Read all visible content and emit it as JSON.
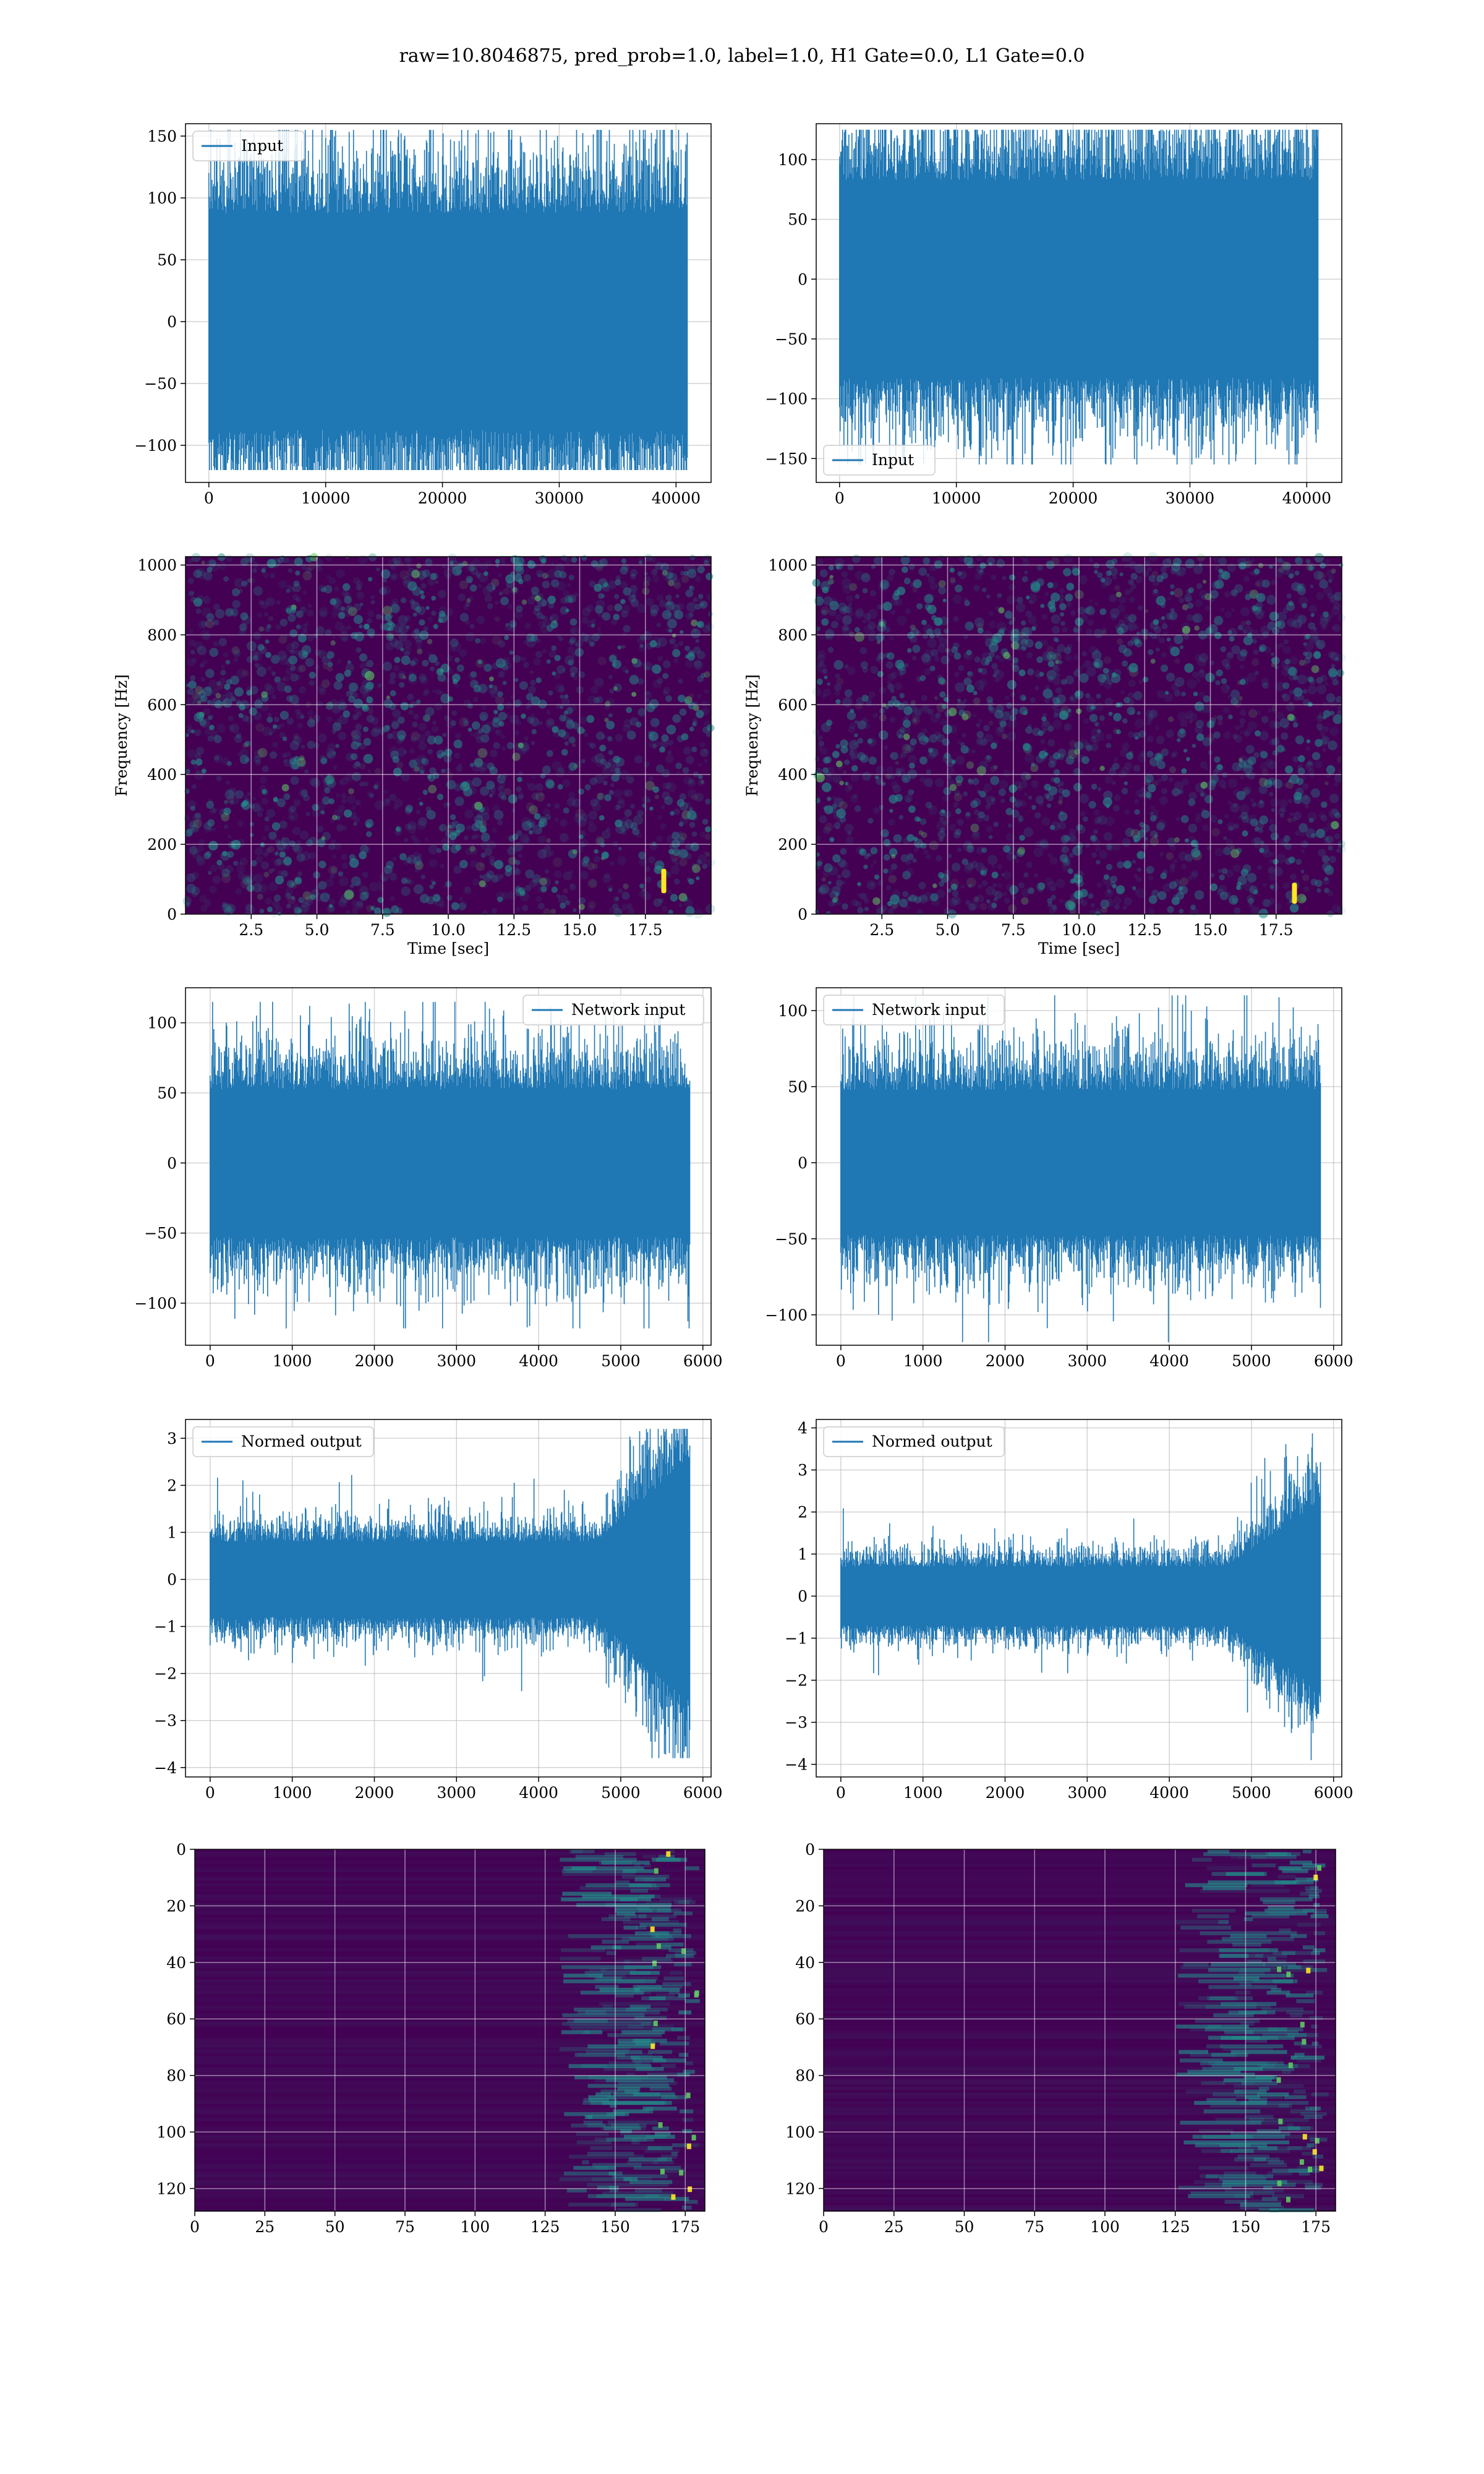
{
  "figure": {
    "title": "raw=10.8046875, pred_prob=1.0, label=1.0, H1 Gate=0.0, L1 Gate=0.0"
  },
  "colors": {
    "line": "#1f77b4",
    "viridis_low": "#440154",
    "viridis_mid": "#21918c",
    "viridis_high": "#fde725",
    "grid": "#b0b0b0"
  },
  "chart_data": [
    {
      "id": "input-h1",
      "type": "line",
      "legend": "Input",
      "legend_loc": "upper left",
      "xlim": [
        -2000,
        43000
      ],
      "ylim": [
        -130,
        160
      ],
      "xticks": [
        0,
        10000,
        20000,
        30000,
        40000
      ],
      "xtick_labels": [
        "0",
        "10000",
        "20000",
        "30000",
        "40000"
      ],
      "yticks": [
        -100,
        -50,
        0,
        50,
        100,
        150
      ],
      "ytick_labels": [
        "−100",
        "−50",
        "0",
        "50",
        "100",
        "150"
      ],
      "series": [
        {
          "x_range": [
            0,
            40960
          ],
          "n_points": 40960,
          "envelope": [
            -120,
            155
          ],
          "typical_band": [
            -85,
            90
          ]
        }
      ]
    },
    {
      "id": "input-l1",
      "type": "line",
      "legend": "Input",
      "legend_loc": "lower left",
      "xlim": [
        -2000,
        43000
      ],
      "ylim": [
        -170,
        130
      ],
      "xticks": [
        0,
        10000,
        20000,
        30000,
        40000
      ],
      "xtick_labels": [
        "0",
        "10000",
        "20000",
        "30000",
        "40000"
      ],
      "yticks": [
        -150,
        -100,
        -50,
        0,
        50,
        100
      ],
      "ytick_labels": [
        "−150",
        "−100",
        "−50",
        "0",
        "50",
        "100"
      ],
      "series": [
        {
          "x_range": [
            0,
            40960
          ],
          "n_points": 40960,
          "envelope": [
            -155,
            125
          ],
          "typical_band": [
            -80,
            85
          ]
        }
      ]
    },
    {
      "id": "spectrogram-h1",
      "type": "heatmap",
      "xlabel": "Time [sec]",
      "ylabel": "Frequency [Hz]",
      "xlim": [
        0,
        20
      ],
      "ylim": [
        0,
        1024
      ],
      "xticks": [
        2.5,
        5.0,
        7.5,
        10.0,
        12.5,
        15.0,
        17.5
      ],
      "xtick_labels": [
        "2.5",
        "5.0",
        "7.5",
        "10.0",
        "12.5",
        "15.0",
        "17.5"
      ],
      "yticks": [
        0,
        200,
        400,
        600,
        800,
        1000
      ],
      "ytick_labels": [
        "0",
        "200",
        "400",
        "600",
        "800",
        "1000"
      ],
      "hotspot": {
        "t": 18.2,
        "f_range": [
          60,
          130
        ]
      }
    },
    {
      "id": "spectrogram-l1",
      "type": "heatmap",
      "xlabel": "Time [sec]",
      "ylabel": "Frequency [Hz]",
      "xlim": [
        0,
        20
      ],
      "ylim": [
        0,
        1024
      ],
      "xticks": [
        2.5,
        5.0,
        7.5,
        10.0,
        12.5,
        15.0,
        17.5
      ],
      "xtick_labels": [
        "2.5",
        "5.0",
        "7.5",
        "10.0",
        "12.5",
        "15.0",
        "17.5"
      ],
      "yticks": [
        0,
        200,
        400,
        600,
        800,
        1000
      ],
      "ytick_labels": [
        "0",
        "200",
        "400",
        "600",
        "800",
        "1000"
      ],
      "hotspot": {
        "t": 18.2,
        "f_range": [
          30,
          90
        ]
      }
    },
    {
      "id": "network-input-h1",
      "type": "line",
      "legend": "Network input",
      "legend_loc": "upper right",
      "xlim": [
        -300,
        6100
      ],
      "ylim": [
        -130,
        125
      ],
      "xticks": [
        0,
        1000,
        2000,
        3000,
        4000,
        5000,
        6000
      ],
      "xtick_labels": [
        "0",
        "1000",
        "2000",
        "3000",
        "4000",
        "5000",
        "6000"
      ],
      "yticks": [
        -100,
        -50,
        0,
        50,
        100
      ],
      "ytick_labels": [
        "−100",
        "−50",
        "0",
        "50",
        "100"
      ],
      "series": [
        {
          "x_range": [
            0,
            5840
          ],
          "n_points": 5840,
          "envelope": [
            -118,
            115
          ],
          "typical_band": [
            -50,
            55
          ]
        }
      ]
    },
    {
      "id": "network-input-l1",
      "type": "line",
      "legend": "Network input",
      "legend_loc": "upper left",
      "xlim": [
        -300,
        6100
      ],
      "ylim": [
        -120,
        115
      ],
      "xticks": [
        0,
        1000,
        2000,
        3000,
        4000,
        5000,
        6000
      ],
      "xtick_labels": [
        "0",
        "1000",
        "2000",
        "3000",
        "4000",
        "5000",
        "6000"
      ],
      "yticks": [
        -100,
        -50,
        0,
        50,
        100
      ],
      "ytick_labels": [
        "−100",
        "−50",
        "0",
        "50",
        "100"
      ],
      "series": [
        {
          "x_range": [
            0,
            5840
          ],
          "n_points": 5840,
          "envelope": [
            -118,
            110
          ],
          "typical_band": [
            -45,
            50
          ]
        }
      ]
    },
    {
      "id": "normed-output-h1",
      "type": "line",
      "legend": "Normed output",
      "legend_loc": "upper left",
      "xlim": [
        -300,
        6100
      ],
      "ylim": [
        -4.2,
        3.4
      ],
      "xticks": [
        0,
        1000,
        2000,
        3000,
        4000,
        5000,
        6000
      ],
      "xtick_labels": [
        "0",
        "1000",
        "2000",
        "3000",
        "4000",
        "5000",
        "6000"
      ],
      "yticks": [
        -4,
        -3,
        -2,
        -1,
        0,
        1,
        2,
        3
      ],
      "ytick_labels": [
        "−4",
        "−3",
        "−2",
        "−1",
        "0",
        "1",
        "2",
        "3"
      ],
      "series": [
        {
          "x_range": [
            0,
            5840
          ],
          "n_points": 5840,
          "envelope": [
            -3.8,
            3.2
          ],
          "typical_band": [
            -0.8,
            0.8
          ],
          "chirp_start": 4700
        }
      ]
    },
    {
      "id": "normed-output-l1",
      "type": "line",
      "legend": "Normed output",
      "legend_loc": "upper left",
      "xlim": [
        -300,
        6100
      ],
      "ylim": [
        -4.3,
        4.2
      ],
      "xticks": [
        0,
        1000,
        2000,
        3000,
        4000,
        5000,
        6000
      ],
      "xtick_labels": [
        "0",
        "1000",
        "2000",
        "3000",
        "4000",
        "5000",
        "6000"
      ],
      "yticks": [
        -4,
        -3,
        -2,
        -1,
        0,
        1,
        2,
        3,
        4
      ],
      "ytick_labels": [
        "−4",
        "−3",
        "−2",
        "−1",
        "0",
        "1",
        "2",
        "3",
        "4"
      ],
      "series": [
        {
          "x_range": [
            0,
            5840
          ],
          "n_points": 5840,
          "envelope": [
            -3.9,
            3.9
          ],
          "typical_band": [
            -0.7,
            0.7
          ],
          "chirp_start": 4700
        }
      ]
    },
    {
      "id": "feature-map-h1",
      "type": "heatmap",
      "xlim": [
        0,
        182
      ],
      "ylim": [
        128,
        0
      ],
      "xticks": [
        0,
        25,
        50,
        75,
        100,
        125,
        150,
        175
      ],
      "xtick_labels": [
        "0",
        "25",
        "50",
        "75",
        "100",
        "125",
        "150",
        "175"
      ],
      "yticks": [
        0,
        20,
        40,
        60,
        80,
        100,
        120
      ],
      "ytick_labels": [
        "0",
        "20",
        "40",
        "60",
        "80",
        "100",
        "120"
      ],
      "active_region": {
        "x_start": 130,
        "x_end": 180
      }
    },
    {
      "id": "feature-map-l1",
      "type": "heatmap",
      "xlim": [
        0,
        182
      ],
      "ylim": [
        128,
        0
      ],
      "xticks": [
        0,
        25,
        50,
        75,
        100,
        125,
        150,
        175
      ],
      "xtick_labels": [
        "0",
        "25",
        "50",
        "75",
        "100",
        "125",
        "150",
        "175"
      ],
      "yticks": [
        0,
        20,
        40,
        60,
        80,
        100,
        120
      ],
      "ytick_labels": [
        "0",
        "20",
        "40",
        "60",
        "80",
        "100",
        "120"
      ],
      "active_region": {
        "x_start": 125,
        "x_end": 180
      }
    }
  ]
}
